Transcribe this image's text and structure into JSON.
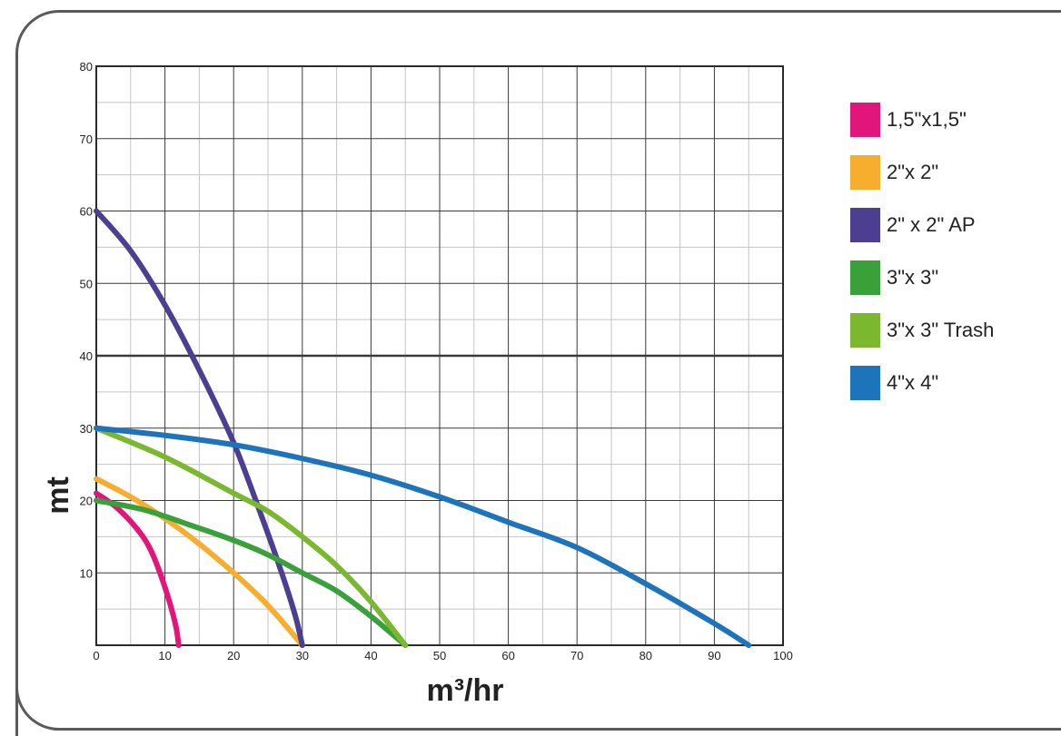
{
  "chart_data": {
    "type": "line",
    "title": "",
    "xlabel": "m³/hr",
    "ylabel": "mt",
    "xlim": [
      0,
      100
    ],
    "ylim": [
      0,
      80
    ],
    "x_ticks": [
      "0",
      "10",
      "20",
      "30",
      "40",
      "50",
      "60",
      "70",
      "80",
      "90",
      "100"
    ],
    "y_ticks": [
      "10",
      "20",
      "30",
      "40",
      "50",
      "60",
      "70",
      "80"
    ],
    "grid": true,
    "legend_position": "right",
    "series": [
      {
        "name": "1,5\"x1,5\"",
        "color": "#e2157a",
        "points": [
          [
            0,
            21
          ],
          [
            3,
            19
          ],
          [
            6,
            16
          ],
          [
            8,
            13
          ],
          [
            10,
            8
          ],
          [
            11.5,
            3
          ],
          [
            12,
            0
          ]
        ]
      },
      {
        "name": "2\"x 2\"",
        "color": "#f7ae2e",
        "points": [
          [
            0,
            23
          ],
          [
            5,
            20.5
          ],
          [
            10,
            17.5
          ],
          [
            15,
            14
          ],
          [
            20,
            10
          ],
          [
            25,
            5.5
          ],
          [
            30,
            0
          ]
        ]
      },
      {
        "name": "2\" x 2\" AP",
        "color": "#4c3f92",
        "points": [
          [
            0,
            60
          ],
          [
            5,
            54.5
          ],
          [
            10,
            47
          ],
          [
            15,
            38
          ],
          [
            20,
            28
          ],
          [
            24,
            18
          ],
          [
            27,
            10
          ],
          [
            29,
            4
          ],
          [
            30,
            0
          ]
        ]
      },
      {
        "name": "3\"x 3\"",
        "color": "#3aa039",
        "points": [
          [
            0,
            20
          ],
          [
            7,
            18.7
          ],
          [
            14,
            16.5
          ],
          [
            20,
            14.5
          ],
          [
            25,
            12.5
          ],
          [
            30,
            10
          ],
          [
            35,
            7.5
          ],
          [
            40,
            4
          ],
          [
            45,
            0
          ]
        ]
      },
      {
        "name": "3\"x 3\" Trash",
        "color": "#7cb82f",
        "points": [
          [
            0,
            30
          ],
          [
            10,
            26
          ],
          [
            20,
            21
          ],
          [
            25,
            18.5
          ],
          [
            30,
            15
          ],
          [
            35,
            11
          ],
          [
            40,
            6
          ],
          [
            45,
            0
          ]
        ]
      },
      {
        "name": "4\"x 4\"",
        "color": "#1d74bb",
        "points": [
          [
            0,
            30
          ],
          [
            10,
            29
          ],
          [
            20,
            27.7
          ],
          [
            30,
            25.8
          ],
          [
            40,
            23.5
          ],
          [
            50,
            20.5
          ],
          [
            60,
            17
          ],
          [
            70,
            13.5
          ],
          [
            80,
            8.5
          ],
          [
            90,
            3
          ],
          [
            95,
            0
          ]
        ]
      }
    ]
  }
}
